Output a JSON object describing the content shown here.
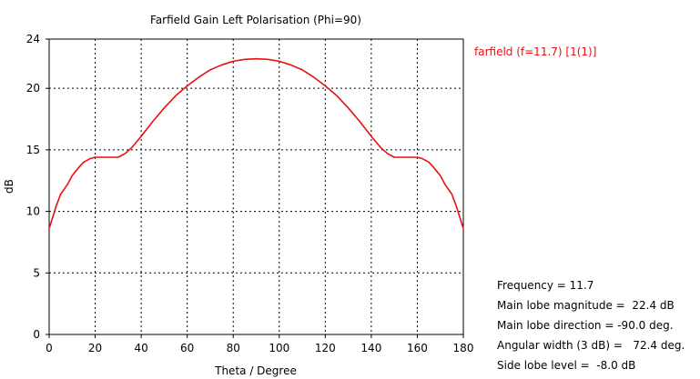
{
  "chart_data": {
    "type": "line",
    "title": "Farfield Gain Left Polarisation (Phi=90)",
    "xlabel": "Theta / Degree",
    "ylabel": "dB",
    "xlim": [
      0,
      180
    ],
    "ylim": [
      0,
      24
    ],
    "x_ticks": [
      "0",
      "20",
      "40",
      "60",
      "80",
      "100",
      "120",
      "140",
      "160",
      "180"
    ],
    "y_ticks": [
      "0",
      "5",
      "10",
      "15",
      "20",
      "24"
    ],
    "grid": true,
    "legend_position": "top-right",
    "series": [
      {
        "name": "farfield (f=11.7) [1(1)]",
        "color": "#e81010",
        "x": [
          0,
          3,
          5,
          8,
          10,
          13,
          15,
          18,
          20,
          25,
          30,
          33,
          36,
          40,
          45,
          50,
          55,
          60,
          65,
          70,
          75,
          80,
          85,
          90,
          95,
          100,
          105,
          110,
          115,
          120,
          125,
          130,
          135,
          140,
          144,
          147,
          150,
          155,
          160,
          162,
          165,
          167,
          170,
          172,
          175,
          177,
          180
        ],
        "y": [
          8.6,
          10.4,
          11.4,
          12.2,
          12.9,
          13.6,
          14.0,
          14.3,
          14.4,
          14.4,
          14.4,
          14.7,
          15.2,
          16.1,
          17.3,
          18.4,
          19.4,
          20.2,
          20.9,
          21.5,
          21.9,
          22.2,
          22.35,
          22.4,
          22.35,
          22.2,
          21.9,
          21.5,
          20.9,
          20.2,
          19.4,
          18.4,
          17.3,
          16.1,
          15.2,
          14.7,
          14.4,
          14.4,
          14.4,
          14.3,
          14.0,
          13.6,
          12.9,
          12.2,
          11.4,
          10.4,
          8.6
        ]
      }
    ],
    "info": {
      "lines": [
        "Frequency = 11.7",
        "Main lobe magnitude =  22.4 dB",
        "Main lobe direction = -90.0 deg.",
        "Angular width (3 dB) =   72.4 deg.",
        "Side lobe level =  -8.0 dB"
      ]
    }
  }
}
